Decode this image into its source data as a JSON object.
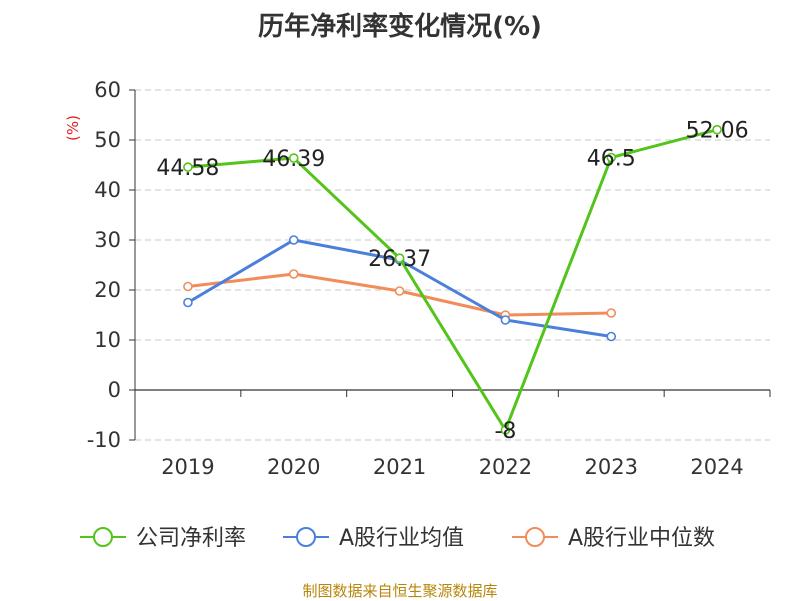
{
  "chart_data": {
    "type": "line",
    "title": "历年净利率变化情况(%)",
    "ylabel": "(%)",
    "categories": [
      "2019",
      "2020",
      "2021",
      "2022",
      "2023",
      "2024"
    ],
    "ylim": [
      -10,
      60
    ],
    "yticks": [
      -10,
      0,
      10,
      20,
      30,
      40,
      50,
      60
    ],
    "grid": true,
    "legend_position": "bottom",
    "series": [
      {
        "name": "公司净利率",
        "color": "#52c41a",
        "values": [
          44.58,
          46.39,
          26.37,
          -8,
          46.5,
          52.06
        ],
        "labels": [
          "44.58",
          "46.39",
          "26.37",
          "-8",
          "46.5",
          "52.06"
        ]
      },
      {
        "name": "A股行业均值",
        "color": "#4a7fdc",
        "values": [
          17.5,
          30,
          26,
          14,
          10.7,
          null
        ]
      },
      {
        "name": "A股行业中位数",
        "color": "#f28c5a",
        "values": [
          20.7,
          23.2,
          19.8,
          15,
          15.4,
          null
        ]
      }
    ]
  },
  "footer": {
    "source": "制图数据来自恒生聚源数据库"
  }
}
